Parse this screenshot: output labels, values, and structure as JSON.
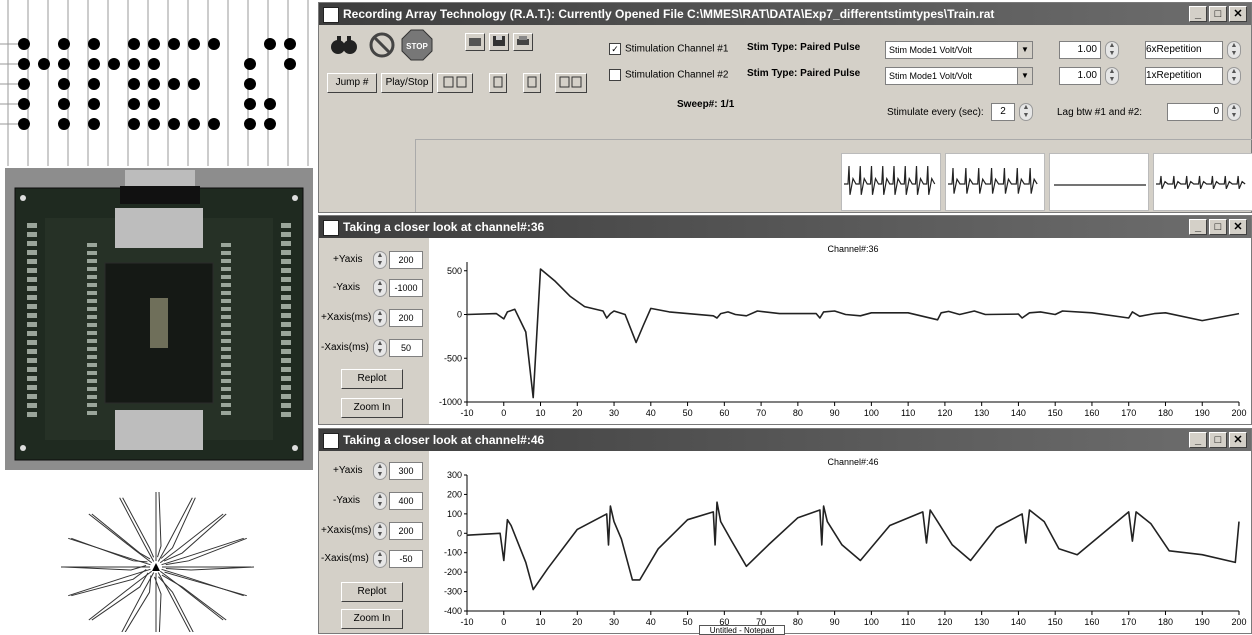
{
  "main_window": {
    "title": "Recording Array Technology (R.A.T.): Currently Opened File C:\\MMES\\RAT\\DATA\\Exp7_differentstimtypes\\Train.rat",
    "buttons": {
      "binoculars_icon": "binoculars",
      "no_entry_icon": "no-symbol",
      "stop_label": "STOP",
      "jump": "Jump #",
      "play_stop": "Play/Stop"
    },
    "stim1": {
      "label": "Stimulation Channel #1",
      "checked": true,
      "type_label": "Stim Type:",
      "type_value": "Paired Pulse",
      "mode": "Stim Mode1 Volt/Volt",
      "amp": "1.00",
      "rep": "6xRepetition"
    },
    "stim2": {
      "label": "Stimulation Channel #2",
      "checked": false,
      "type_label": "Stim Type:",
      "type_value": "Paired Pulse",
      "mode": "Stim Mode1 Volt/Volt",
      "amp": "1.00",
      "rep": "1xRepetition"
    },
    "sweep": "Sweep#: 1/1",
    "stim_every_label": "Stimulate every (sec):",
    "stim_every_value": "2",
    "lag_label": "Lag btw #1 and #2:",
    "lag_value": "0"
  },
  "closer1": {
    "title": "Taking a closer look at channel#:36",
    "ylabel_plus": "+Yaxis",
    "yplus": "200",
    "ylabel_minus": "-Yaxis",
    "yminus": "-1000",
    "xlabel_plus": "+Xaxis(ms)",
    "xplus": "200",
    "xlabel_minus": "-Xaxis(ms)",
    "xminus": "50",
    "replot": "Replot",
    "zoom": "Zoom In",
    "chart_title": "Channel#:36",
    "yticks": [
      "500",
      "0",
      "-500",
      "-1000"
    ],
    "xticks": [
      "-10",
      "0",
      "10",
      "20",
      "30",
      "40",
      "50",
      "60",
      "70",
      "80",
      "90",
      "100",
      "110",
      "120",
      "130",
      "140",
      "150",
      "160",
      "170",
      "180",
      "190",
      "200"
    ]
  },
  "closer2": {
    "title": "Taking a closer look at channel#:46",
    "ylabel_plus": "+Yaxis",
    "yplus": "300",
    "ylabel_minus": "-Yaxis",
    "yminus": "400",
    "xlabel_plus": "+Xaxis(ms)",
    "xplus": "200",
    "xlabel_minus": "-Xaxis(ms)",
    "xminus": "-50",
    "replot": "Replot",
    "zoom": "Zoom In",
    "chart_title": "Channel#:46",
    "yticks": [
      "300",
      "200",
      "100",
      "0",
      "-100",
      "-200",
      "-300",
      "-400"
    ],
    "xticks": [
      "-10",
      "0",
      "10",
      "20",
      "30",
      "40",
      "50",
      "60",
      "70",
      "80",
      "90",
      "100",
      "110",
      "120",
      "130",
      "140",
      "150",
      "160",
      "170",
      "180",
      "190",
      "200"
    ]
  },
  "taskbar_item": "Untitled - Notepad",
  "chart_data": [
    {
      "type": "line",
      "title": "Channel#:36",
      "xlim": [
        -10,
        200
      ],
      "ylim": [
        -1000,
        600
      ],
      "x": [
        -10,
        -2,
        0,
        1,
        3,
        6,
        8,
        10,
        14,
        18,
        22,
        27,
        28,
        29,
        30,
        33,
        36,
        38,
        40,
        45,
        50,
        57,
        58,
        59,
        61,
        63,
        66,
        69,
        75,
        85,
        86,
        87,
        90,
        93,
        97,
        100,
        110,
        118,
        119,
        121,
        124,
        128,
        131,
        140,
        141,
        143,
        146,
        150,
        152,
        160,
        170,
        171,
        173,
        177,
        180,
        190,
        200
      ],
      "y": [
        0,
        10,
        -50,
        30,
        60,
        -200,
        -950,
        520,
        380,
        210,
        90,
        40,
        -40,
        10,
        40,
        0,
        -320,
        -120,
        70,
        30,
        10,
        -15,
        -40,
        10,
        30,
        0,
        -15,
        40,
        10,
        10,
        -40,
        30,
        40,
        0,
        -15,
        20,
        20,
        -60,
        20,
        35,
        0,
        40,
        0,
        5,
        -40,
        20,
        30,
        0,
        40,
        20,
        -40,
        30,
        -20,
        10,
        20,
        -70,
        10
      ]
    },
    {
      "type": "line",
      "title": "Channel#:46",
      "xlim": [
        -10,
        200
      ],
      "ylim": [
        -400,
        300
      ],
      "x": [
        -10,
        -1,
        0,
        1,
        2,
        6,
        8,
        12,
        20,
        28,
        28.5,
        29,
        30,
        32,
        35,
        37,
        42,
        50,
        57,
        57.5,
        58,
        59,
        62,
        66,
        72,
        80,
        86,
        86.5,
        87,
        88,
        92,
        97,
        105,
        114,
        115,
        116,
        118,
        122,
        127,
        134,
        141,
        142,
        143,
        147,
        151,
        156,
        170,
        171,
        172,
        176,
        181,
        190,
        199,
        200
      ],
      "y": [
        -10,
        0,
        -140,
        70,
        40,
        -150,
        -290,
        -180,
        20,
        100,
        -60,
        140,
        60,
        -30,
        -240,
        -240,
        -80,
        70,
        110,
        -60,
        160,
        60,
        -40,
        -170,
        -60,
        80,
        120,
        -60,
        140,
        60,
        -60,
        -140,
        40,
        110,
        -50,
        120,
        60,
        -60,
        -140,
        30,
        100,
        -50,
        120,
        60,
        -80,
        -110,
        110,
        -40,
        110,
        50,
        -90,
        -110,
        -150,
        60
      ]
    }
  ]
}
